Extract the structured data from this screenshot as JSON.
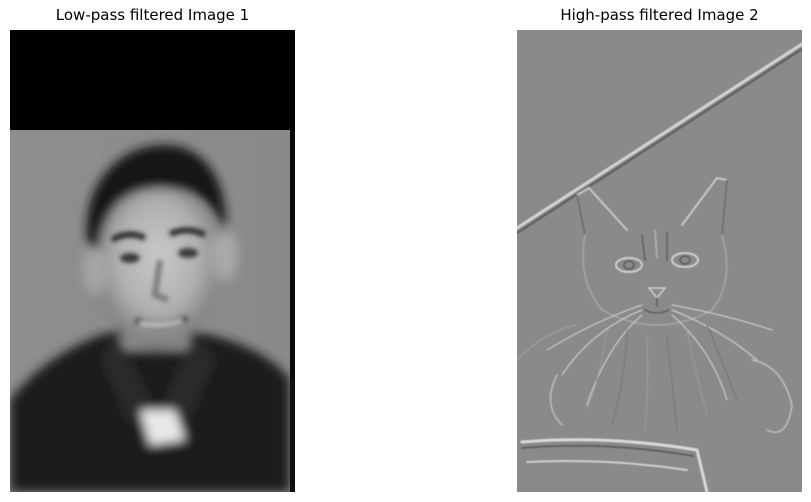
{
  "figure": {
    "left_panel": {
      "title": "Low-pass filtered Image 1"
    },
    "right_panel": {
      "title": "High-pass filtered Image 2"
    }
  },
  "colors": {
    "background": "#ffffff",
    "high_pass_gray": "#8a8a8a",
    "low_pass_background": "#8c8c8c"
  }
}
